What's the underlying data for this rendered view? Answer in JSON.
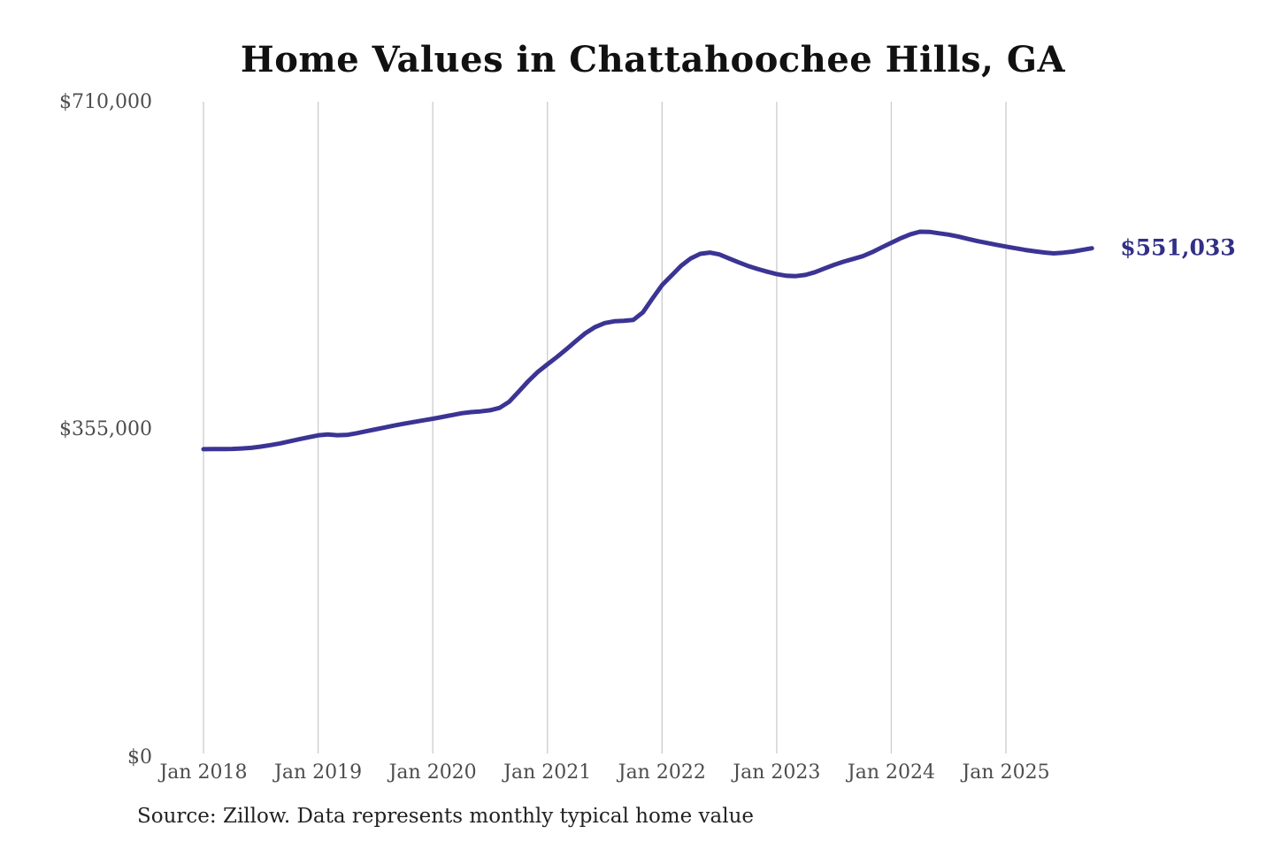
{
  "page": {
    "title": "Home Values in Chattahoochee Hills, GA",
    "source_note": "Source: Zillow. Data represents monthly typical home value"
  },
  "colors": {
    "line": "#3b3494",
    "end_label": "#322f87",
    "gridline": "#cccccc",
    "axis_label": "#4d4d4d",
    "title": "#111111",
    "source": "#222222",
    "background": "#ffffff"
  },
  "chart_data": {
    "type": "line",
    "title": "Home Values in Chattahoochee Hills, GA",
    "xlabel": "",
    "ylabel": "",
    "ylim": [
      0,
      710000
    ],
    "grid": "vertical-year-gridlines-only",
    "legend": "none",
    "x_tick_labels": [
      "Jan 2018",
      "Jan 2019",
      "Jan 2020",
      "Jan 2021",
      "Jan 2022",
      "Jan 2023",
      "Jan 2024",
      "Jan 2025"
    ],
    "y_tick_labels": [
      "$0",
      "$355,000",
      "$710,000"
    ],
    "y_tick_values": [
      0,
      355000,
      710000
    ],
    "end_label": "$551,033",
    "end_value": 551033,
    "series": [
      {
        "name": "Monthly typical home value",
        "start_month": "2018-01",
        "frequency": "monthly",
        "values": [
          333000,
          333200,
          333100,
          333300,
          333800,
          334500,
          335800,
          337400,
          339300,
          341500,
          343800,
          346000,
          348000,
          349000,
          348200,
          348500,
          350300,
          352400,
          354500,
          356600,
          358700,
          360700,
          362500,
          364300,
          366000,
          368000,
          370000,
          372000,
          373200,
          374000,
          375200,
          377800,
          384500,
          395500,
          406800,
          416800,
          425000,
          433000,
          441500,
          450500,
          459000,
          465500,
          469800,
          471800,
          472300,
          473300,
          481500,
          496500,
          511000,
          521500,
          532000,
          540000,
          545000,
          546300,
          544300,
          540000,
          535800,
          531800,
          528600,
          525600,
          523000,
          521200,
          520800,
          522000,
          525000,
          529000,
          533000,
          536400,
          539400,
          542400,
          546800,
          552000,
          557000,
          562000,
          566200,
          569000,
          568800,
          567200,
          565800,
          563800,
          561200,
          558800,
          556800,
          554800,
          552800,
          551000,
          549200,
          547800,
          546400,
          545500,
          546200,
          547400,
          549200,
          551033
        ]
      }
    ]
  }
}
